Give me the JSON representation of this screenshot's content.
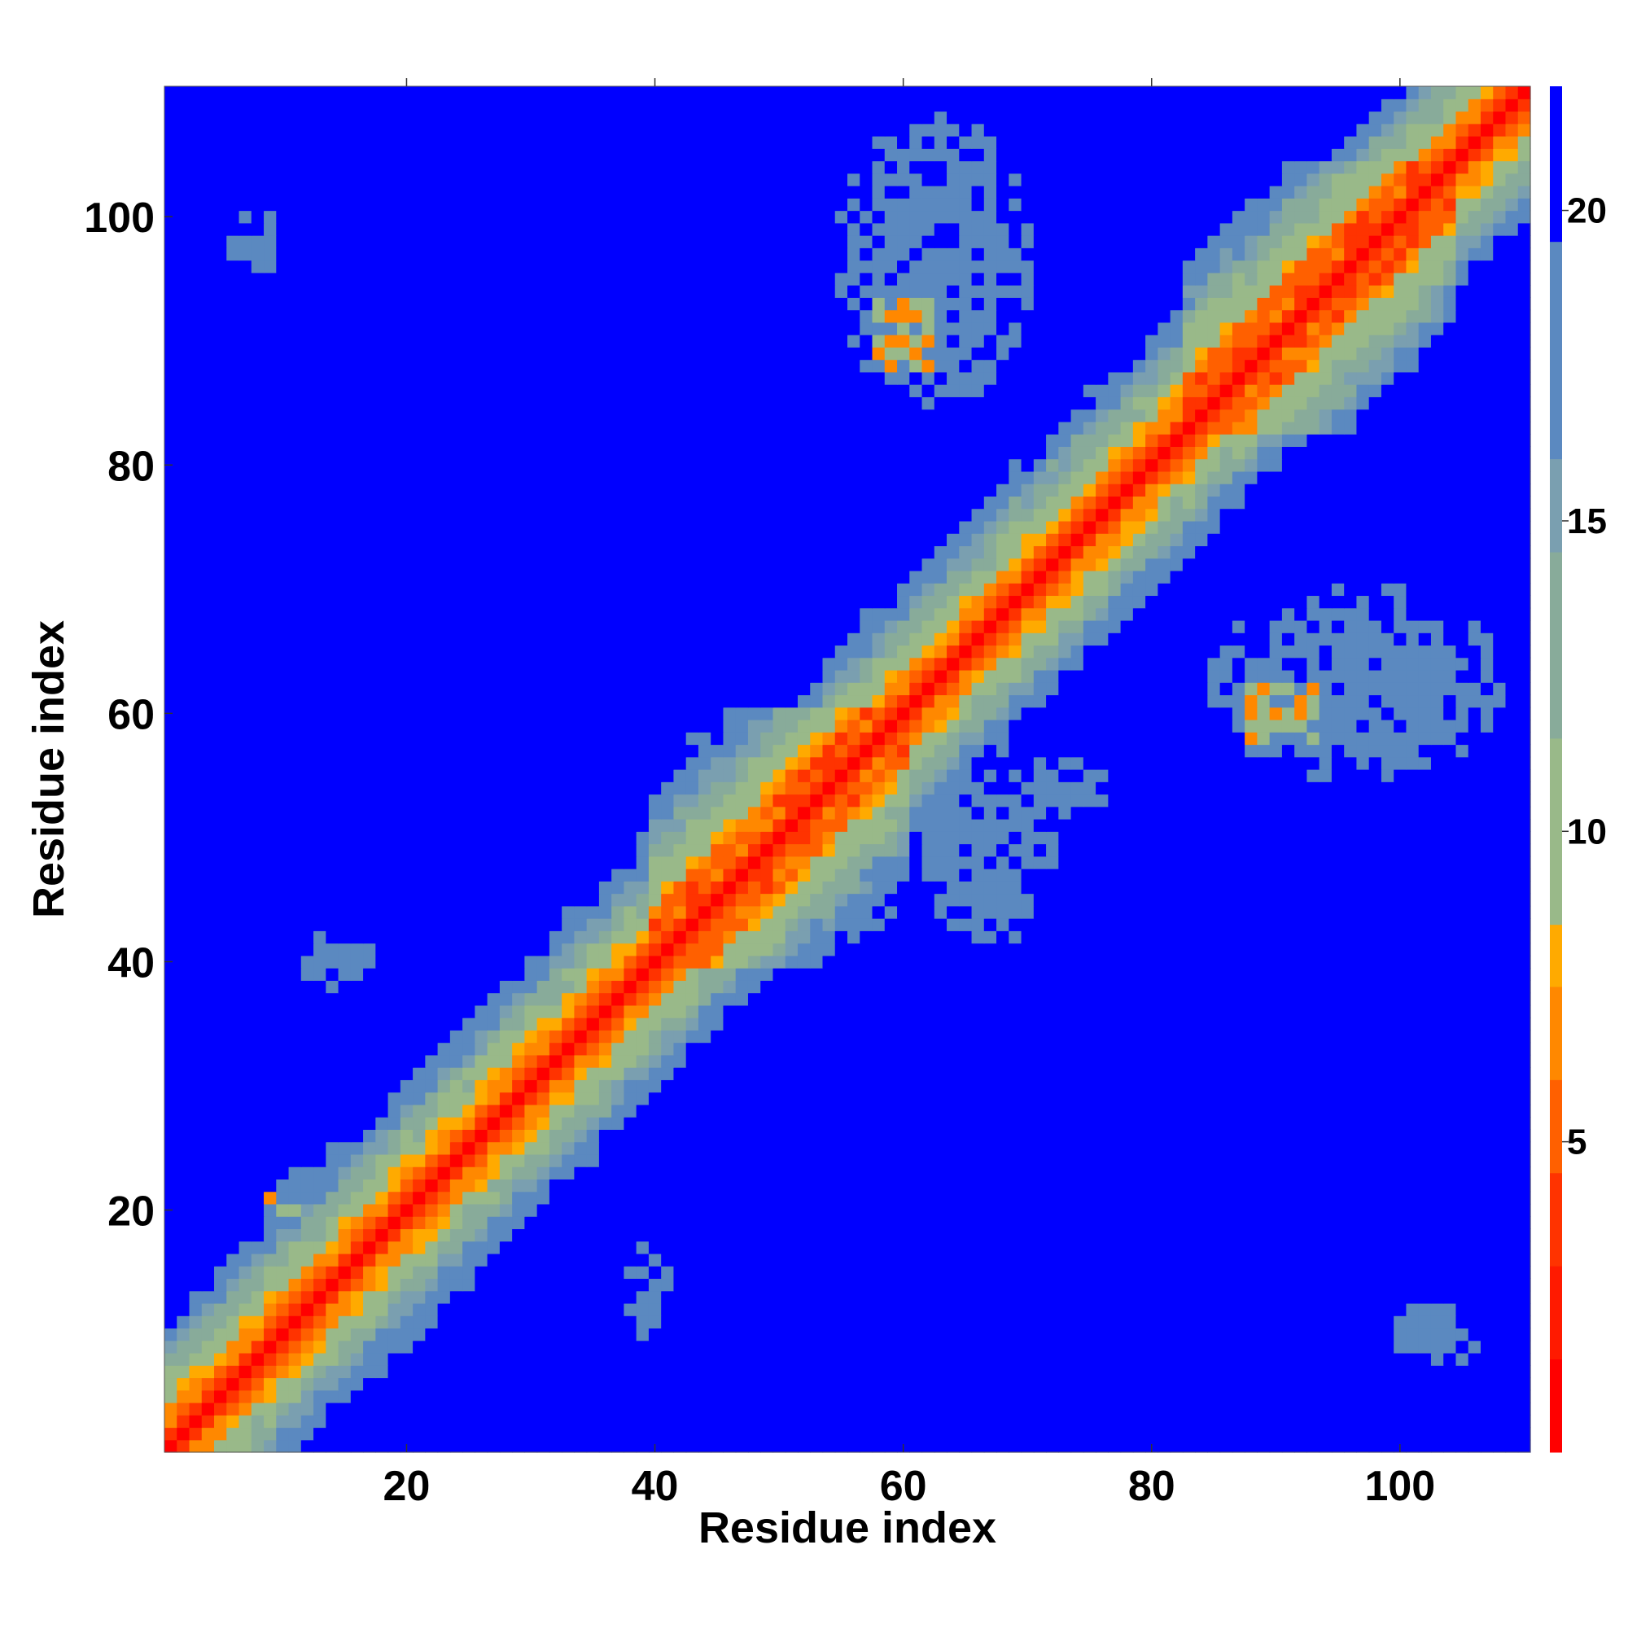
{
  "chart_data": {
    "type": "heatmap",
    "title": "",
    "xlabel": "Residue index",
    "ylabel": "Residue index",
    "n_residues": 110,
    "xlim": [
      0.5,
      110.5
    ],
    "ylim": [
      0.5,
      110.5
    ],
    "x_ticks": [
      20,
      40,
      60,
      80,
      100
    ],
    "y_ticks": [
      20,
      40,
      60,
      80,
      100
    ],
    "colorbar": {
      "range": [
        0,
        22
      ],
      "ticks": [
        5,
        10,
        15,
        20
      ],
      "bands": [
        {
          "max": 1.5,
          "color": "#ff0000"
        },
        {
          "max": 3.0,
          "color": "#ff1a00"
        },
        {
          "max": 4.5,
          "color": "#ff3300"
        },
        {
          "max": 6.0,
          "color": "#ff6000"
        },
        {
          "max": 7.5,
          "color": "#ff8800"
        },
        {
          "max": 8.5,
          "color": "#ffaa00"
        },
        {
          "max": 11.5,
          "color": "#99b989"
        },
        {
          "max": 14.5,
          "color": "#88ab9a"
        },
        {
          "max": 16.0,
          "color": "#7a9fb0"
        },
        {
          "max": 19.5,
          "color": "#5b89c0"
        },
        {
          "max": 22.0,
          "color": "#0000ff"
        }
      ]
    },
    "matrix_description": "Symmetric residue-residue distance map (Angstrom); diagonal band ~3.8 per residue separation",
    "diagonal_profile": [
      0,
      3.8,
      5.8,
      7.2,
      8.8,
      10.6,
      12.0,
      13.8,
      15.6,
      17.2,
      18.8,
      20.5
    ],
    "helix_segments": [
      [
        40,
        60
      ],
      [
        83,
        104
      ]
    ],
    "helix_profile": [
      0,
      3.8,
      5.4,
      5.0,
      6.2,
      8.6,
      10.1,
      10.5,
      12.0,
      13.8,
      15.2,
      16.5,
      18.0,
      19.4,
      20.8
    ],
    "off_diagonal_contacts": [
      {
        "x": [
          55,
          70
        ],
        "y": [
          85,
          108
        ],
        "core": [
          [
            58,
            62
          ],
          [
            88,
            93
          ]
        ]
      },
      {
        "x": [
          85,
          108
        ],
        "y": [
          55,
          70
        ],
        "core": [
          [
            88,
            93
          ],
          [
            58,
            62
          ]
        ]
      },
      {
        "x": [
          8,
          25
        ],
        "y": [
          8,
          25
        ],
        "core": [
          [
            8,
            11
          ],
          [
            20,
            23
          ]
        ]
      },
      {
        "x": [
          50,
          60
        ],
        "y": [
          42,
          55
        ],
        "core": []
      },
      {
        "x": [
          42,
          55
        ],
        "y": [
          50,
          60
        ],
        "core": []
      },
      {
        "x": [
          62,
          72
        ],
        "y": [
          42,
          55
        ],
        "core": []
      },
      {
        "x": [
          70,
          76
        ],
        "y": [
          52,
          56
        ],
        "core": []
      },
      {
        "x": [
          100,
          106
        ],
        "y": [
          8,
          12
        ],
        "core": []
      },
      {
        "x": [
          38,
          41
        ],
        "y": [
          10,
          17
        ],
        "core": []
      },
      {
        "x": [
          12,
          17
        ],
        "y": [
          38,
          42
        ],
        "core": []
      },
      {
        "x": [
          6,
          10
        ],
        "y": [
          96,
          100
        ],
        "core": []
      }
    ]
  }
}
